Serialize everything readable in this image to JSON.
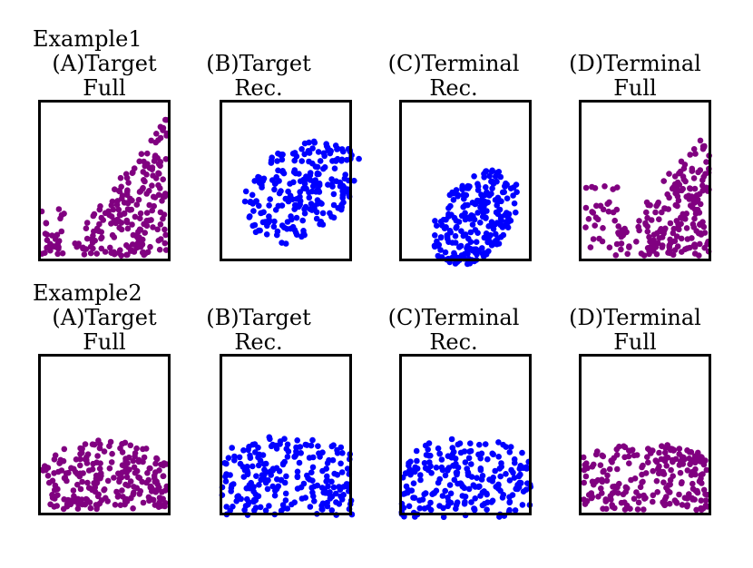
{
  "figure": {
    "colors": {
      "full": "#800080",
      "reconstructed": "#0000ff",
      "frame": "#000000"
    },
    "rows": [
      {
        "label": "Example1",
        "panels": [
          {
            "title_line1": "(A)Target",
            "title_line2": "Full",
            "color_key": "full"
          },
          {
            "title_line1": "(B)Target",
            "title_line2": "Rec.",
            "color_key": "reconstructed"
          },
          {
            "title_line1": "(C)Terminal",
            "title_line2": "Rec.",
            "color_key": "reconstructed"
          },
          {
            "title_line1": "(D)Terminal",
            "title_line2": "Full",
            "color_key": "full"
          }
        ]
      },
      {
        "label": "Example2",
        "panels": [
          {
            "title_line1": "(A)Target",
            "title_line2": "Full",
            "color_key": "full"
          },
          {
            "title_line1": "(B)Target",
            "title_line2": "Rec.",
            "color_key": "reconstructed"
          },
          {
            "title_line1": "(C)Terminal",
            "title_line2": "Rec.",
            "color_key": "reconstructed"
          },
          {
            "title_line1": "(D)Terminal",
            "title_line2": "Full",
            "color_key": "full"
          }
        ]
      }
    ]
  }
}
